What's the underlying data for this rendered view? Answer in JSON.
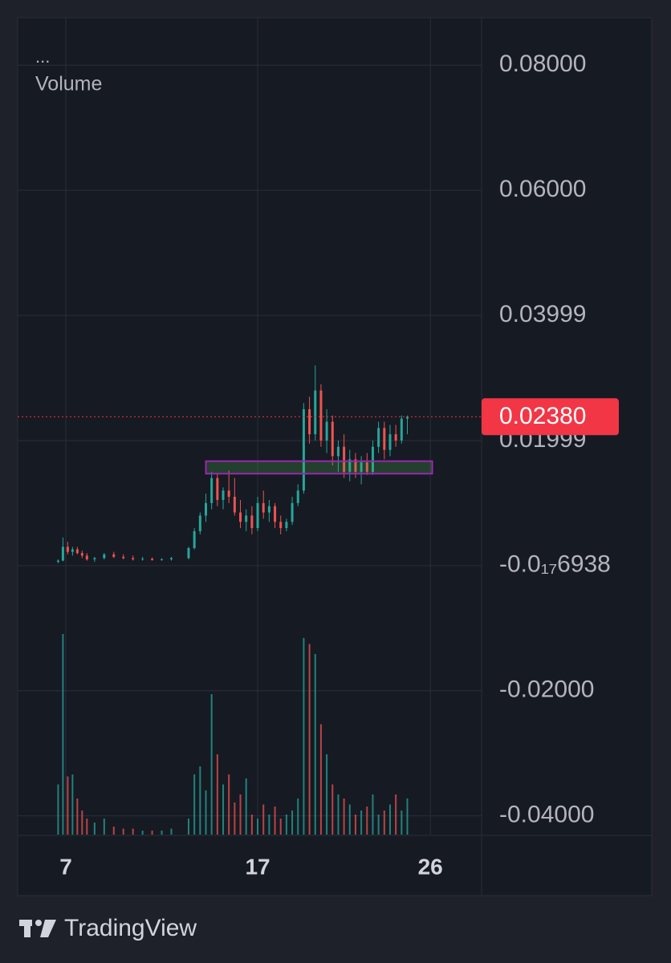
{
  "chart_data": {
    "type": "candlestick",
    "menu": "...",
    "indicator": "Volume",
    "x": [
      6.6,
      6.85,
      7.1,
      7.35,
      7.6,
      7.85,
      8.1,
      8.5,
      9.0,
      9.5,
      10.0,
      10.5,
      11.0,
      11.5,
      12.0,
      12.5,
      13.4,
      13.7,
      14.0,
      14.3,
      14.6,
      14.9,
      15.2,
      15.5,
      15.8,
      16.1,
      16.4,
      16.7,
      17.0,
      17.3,
      17.6,
      17.9,
      18.2,
      18.5,
      18.8,
      19.1,
      19.4,
      19.7,
      20.0,
      20.3,
      20.6,
      20.9,
      21.2,
      21.5,
      21.8,
      22.1,
      22.4,
      22.7,
      23.0,
      23.3,
      23.6,
      23.9,
      24.2,
      24.5,
      24.8
    ],
    "open": [
      0.0006,
      0.0008,
      0.003,
      0.0022,
      0.0026,
      0.002,
      0.0016,
      0.001,
      0.0012,
      0.0018,
      0.0014,
      0.0012,
      0.001,
      0.0011,
      0.0009,
      0.001,
      0.0012,
      0.0028,
      0.0055,
      0.008,
      0.01,
      0.014,
      0.0105,
      0.012,
      0.011,
      0.0085,
      0.007,
      0.008,
      0.006,
      0.01,
      0.0085,
      0.0095,
      0.007,
      0.006,
      0.007,
      0.01,
      0.012,
      0.025,
      0.021,
      0.028,
      0.02,
      0.023,
      0.0175,
      0.019,
      0.015,
      0.017,
      0.015,
      0.0165,
      0.015,
      0.019,
      0.022,
      0.0185,
      0.021,
      0.02,
      0.0235
    ],
    "high": [
      0.001,
      0.0045,
      0.0038,
      0.003,
      0.003,
      0.0024,
      0.002,
      0.0014,
      0.002,
      0.0022,
      0.0018,
      0.0016,
      0.0014,
      0.0013,
      0.0012,
      0.0014,
      0.003,
      0.006,
      0.0085,
      0.0115,
      0.015,
      0.0148,
      0.0125,
      0.0152,
      0.014,
      0.0105,
      0.009,
      0.0095,
      0.011,
      0.012,
      0.0105,
      0.01,
      0.008,
      0.0075,
      0.011,
      0.013,
      0.026,
      0.027,
      0.032,
      0.029,
      0.025,
      0.024,
      0.02,
      0.021,
      0.0185,
      0.018,
      0.0175,
      0.018,
      0.02,
      0.023,
      0.023,
      0.0225,
      0.0225,
      0.024,
      0.024
    ],
    "low": [
      0.0004,
      0.0007,
      0.0018,
      0.0016,
      0.0018,
      0.0012,
      0.0008,
      0.0006,
      0.001,
      0.0012,
      0.001,
      0.0008,
      0.0008,
      0.0008,
      0.0008,
      0.0008,
      0.001,
      0.0026,
      0.005,
      0.007,
      0.009,
      0.0095,
      0.009,
      0.01,
      0.008,
      0.006,
      0.0055,
      0.005,
      0.0055,
      0.0075,
      0.007,
      0.006,
      0.005,
      0.0055,
      0.0065,
      0.0095,
      0.0115,
      0.0195,
      0.02,
      0.019,
      0.018,
      0.016,
      0.015,
      0.014,
      0.0135,
      0.014,
      0.013,
      0.0145,
      0.0145,
      0.018,
      0.017,
      0.0175,
      0.019,
      0.0195,
      0.021
    ],
    "close": [
      0.0008,
      0.003,
      0.0022,
      0.0026,
      0.002,
      0.0016,
      0.001,
      0.0012,
      0.0018,
      0.0014,
      0.0012,
      0.001,
      0.0011,
      0.0009,
      0.001,
      0.0012,
      0.0028,
      0.0055,
      0.008,
      0.01,
      0.014,
      0.0105,
      0.012,
      0.011,
      0.0085,
      0.007,
      0.008,
      0.006,
      0.01,
      0.0085,
      0.0095,
      0.007,
      0.006,
      0.007,
      0.01,
      0.012,
      0.025,
      0.021,
      0.028,
      0.02,
      0.023,
      0.0175,
      0.019,
      0.015,
      0.017,
      0.015,
      0.0165,
      0.015,
      0.019,
      0.022,
      0.0185,
      0.021,
      0.02,
      0.0235,
      0.0238
    ],
    "volume": [
      25,
      100,
      29,
      30,
      18,
      12,
      8,
      6,
      8,
      4,
      3,
      3,
      2,
      2,
      2,
      3,
      8,
      30,
      34,
      22,
      70,
      40,
      25,
      30,
      16,
      20,
      28,
      10,
      8,
      15,
      10,
      14,
      8,
      10,
      12,
      18,
      98,
      95,
      90,
      55,
      40,
      25,
      20,
      18,
      15,
      10,
      12,
      14,
      20,
      10,
      12,
      15,
      20,
      12,
      18
    ],
    "up_color": "#26a69a",
    "down_color": "#ef5350",
    "xlim": [
      4.49,
      28.67
    ],
    "xticks": [
      7,
      17,
      26
    ],
    "ylim": [
      -0.043,
      0.0876
    ],
    "yticks": [
      {
        "value": 0.08,
        "label": "0.08000"
      },
      {
        "value": 0.06,
        "label": "0.06000"
      },
      {
        "value": 0.03999,
        "label": "0.03999"
      },
      {
        "value": 0.01999,
        "label": "0.01999"
      },
      {
        "value": -6.938e-18,
        "label": "-0.0₁₇6938"
      },
      {
        "value": -0.02,
        "label": "-0.02000"
      },
      {
        "value": -0.04,
        "label": "-0.04000"
      }
    ],
    "grid": true,
    "last_price": {
      "value": 0.0238,
      "label": "0.02380",
      "color": "#f23645"
    },
    "zone": {
      "x": [
        14.3,
        26.1
      ],
      "y": [
        0.0147,
        0.0167
      ],
      "color": "#9c27b0"
    }
  },
  "brand": "TradingView"
}
